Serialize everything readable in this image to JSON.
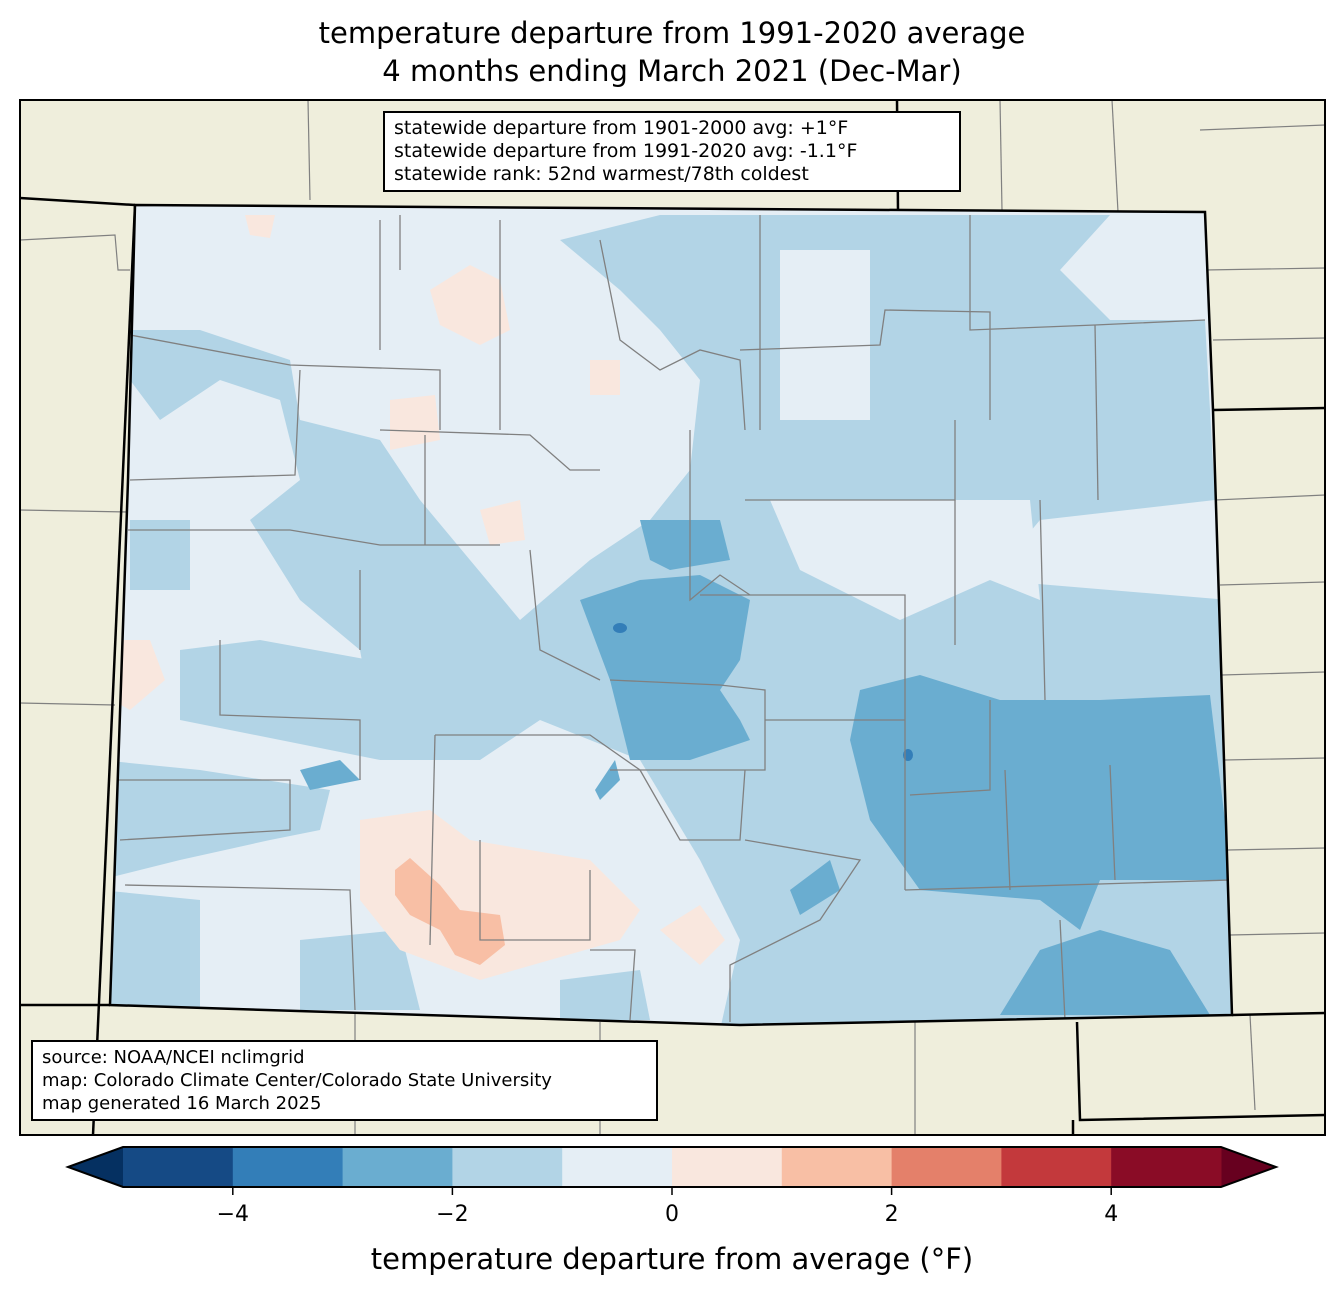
{
  "title": {
    "line1": "temperature departure from 1991-2020 average",
    "line2": "4 months ending March 2021 (Dec-Mar)"
  },
  "stats_box": {
    "lines": [
      "statewide departure from 1901-2000 avg: +1°F",
      "statewide departure from 1991-2020 avg: -1.1°F",
      "statewide rank: 52nd warmest/78th coldest"
    ]
  },
  "source_box": {
    "lines": [
      "source: NOAA/NCEI nclimgrid",
      "map: Colorado Climate Center/Colorado State University",
      "map generated 16 March 2025"
    ]
  },
  "colorbar": {
    "label": "temperature departure from average (°F)",
    "ticks": [
      "−4",
      "−2",
      "0",
      "2",
      "4"
    ],
    "range": [
      -5,
      5
    ],
    "step": 1,
    "under_color": "#053061",
    "over_color": "#67001f",
    "colors": [
      "#154a85",
      "#337eb8",
      "#6aadd0",
      "#b2d4e6",
      "#e5eef5",
      "#f9e7de",
      "#f8bfa5",
      "#e4806a",
      "#c3393c",
      "#8a0c26"
    ]
  },
  "map": {
    "land_color": "#efeedc",
    "county_line_color": "#808080"
  }
}
